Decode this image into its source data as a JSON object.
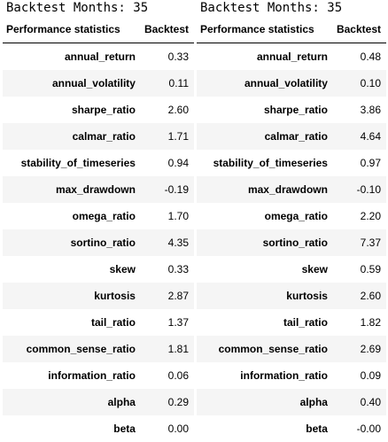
{
  "tables": [
    {
      "heading": "Backtest Months: 35",
      "columns": [
        "Performance statistics",
        "Backtest"
      ],
      "rows": [
        {
          "name": "annual_return",
          "value": "0.33"
        },
        {
          "name": "annual_volatility",
          "value": "0.11"
        },
        {
          "name": "sharpe_ratio",
          "value": "2.60"
        },
        {
          "name": "calmar_ratio",
          "value": "1.71"
        },
        {
          "name": "stability_of_timeseries",
          "value": "0.94"
        },
        {
          "name": "max_drawdown",
          "value": "-0.19"
        },
        {
          "name": "omega_ratio",
          "value": "1.70"
        },
        {
          "name": "sortino_ratio",
          "value": "4.35"
        },
        {
          "name": "skew",
          "value": "0.33"
        },
        {
          "name": "kurtosis",
          "value": "2.87"
        },
        {
          "name": "tail_ratio",
          "value": "1.37"
        },
        {
          "name": "common_sense_ratio",
          "value": "1.81"
        },
        {
          "name": "information_ratio",
          "value": "0.06"
        },
        {
          "name": "alpha",
          "value": "0.29"
        },
        {
          "name": "beta",
          "value": "0.00"
        }
      ]
    },
    {
      "heading": "Backtest Months: 35",
      "columns": [
        "Performance statistics",
        "Backtest"
      ],
      "rows": [
        {
          "name": "annual_return",
          "value": "0.48"
        },
        {
          "name": "annual_volatility",
          "value": "0.10"
        },
        {
          "name": "sharpe_ratio",
          "value": "3.86"
        },
        {
          "name": "calmar_ratio",
          "value": "4.64"
        },
        {
          "name": "stability_of_timeseries",
          "value": "0.97"
        },
        {
          "name": "max_drawdown",
          "value": "-0.10"
        },
        {
          "name": "omega_ratio",
          "value": "2.20"
        },
        {
          "name": "sortino_ratio",
          "value": "7.37"
        },
        {
          "name": "skew",
          "value": "0.59"
        },
        {
          "name": "kurtosis",
          "value": "2.60"
        },
        {
          "name": "tail_ratio",
          "value": "1.82"
        },
        {
          "name": "common_sense_ratio",
          "value": "2.69"
        },
        {
          "name": "information_ratio",
          "value": "0.09"
        },
        {
          "name": "alpha",
          "value": "0.40"
        },
        {
          "name": "beta",
          "value": "-0.00"
        }
      ]
    }
  ]
}
